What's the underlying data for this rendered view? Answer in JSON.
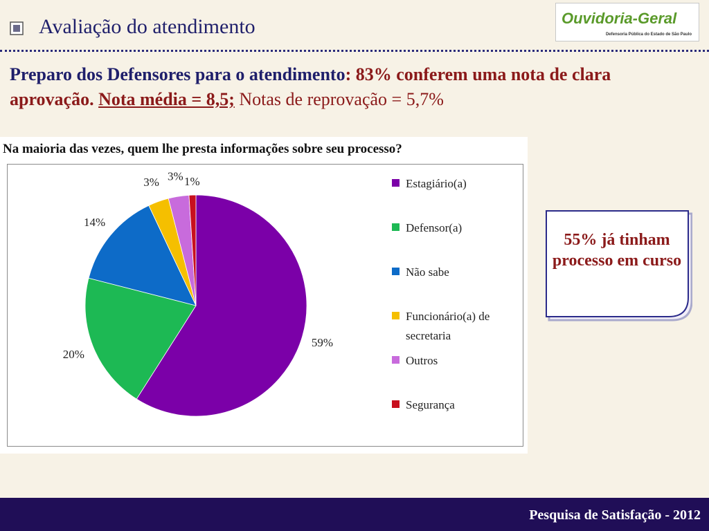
{
  "header": {
    "title": "Avaliação do atendimento",
    "logo_name": "Ouvidoria-Geral",
    "logo_sub": "Defensoria Pública do Estado de São Paulo",
    "bullet_icon": "square-bullet-icon"
  },
  "subtitle": {
    "part1": "Preparo dos Defensores para o atendimento",
    "part2": ": 83% conferem uma nota de clara aprovação. ",
    "part3": "Nota média = 8,5;",
    "part4": " Notas de reprovação = 5,7%"
  },
  "chart_data": {
    "type": "pie",
    "title": "Na maioria das vezes, quem lhe presta informações sobre seu processo?",
    "categories": [
      "Estagiário(a)",
      "Defensor(a)",
      "Não sabe",
      "Funcionário(a) de secretaria",
      "Outros",
      "Segurança"
    ],
    "values": [
      59,
      20,
      14,
      3,
      3,
      1
    ],
    "labels": [
      "59%",
      "20%",
      "14%",
      "3%",
      "3%",
      "1%"
    ],
    "colors": [
      "#7b00a8",
      "#1db954",
      "#0d6bc8",
      "#f5bf00",
      "#c86bdc",
      "#c8101e"
    ],
    "legend_position": "right"
  },
  "callout": {
    "text": "55% já tinham processo em curso"
  },
  "footer": {
    "text": "Pesquisa de Satisfação - 2012"
  }
}
